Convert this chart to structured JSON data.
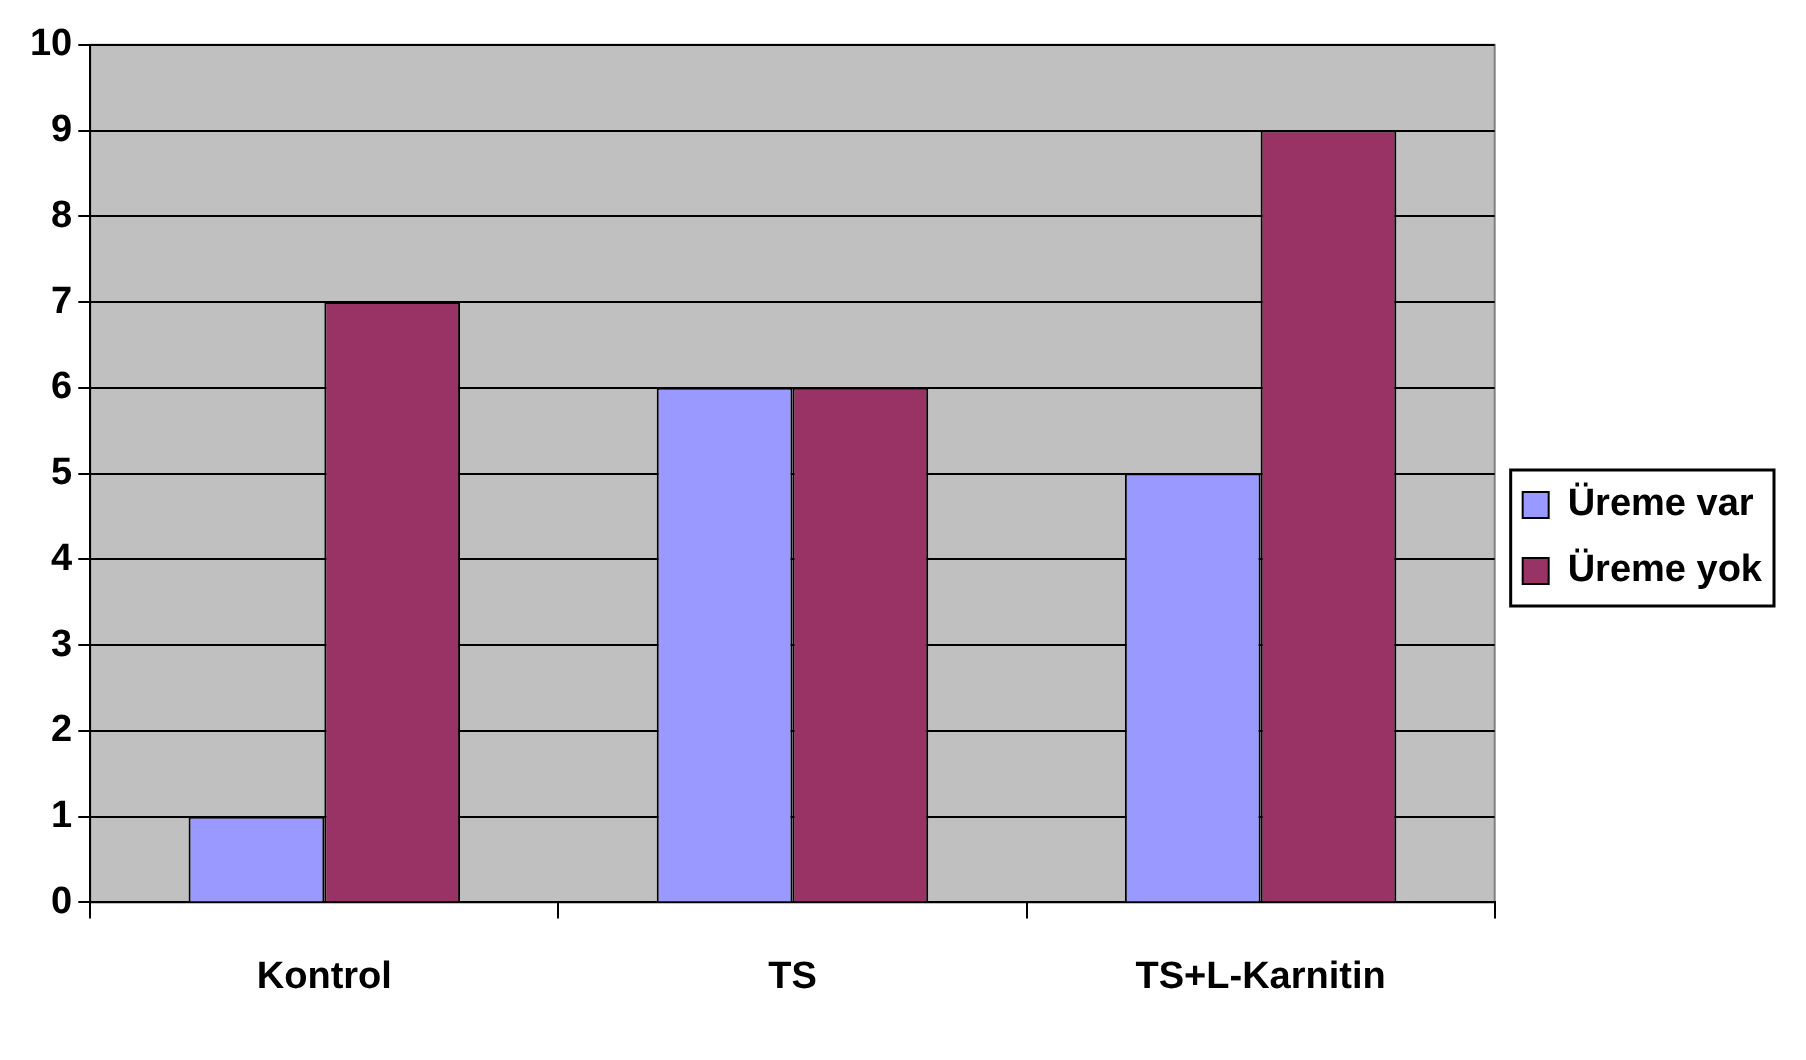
{
  "chart_data": {
    "type": "bar",
    "categories": [
      "Kontrol",
      "TS",
      "TS+L-Karnitin"
    ],
    "series": [
      {
        "name": "Üreme var",
        "color": "#9999ff",
        "values": [
          1,
          6,
          5
        ]
      },
      {
        "name": "Üreme yok",
        "color": "#993366",
        "values": [
          7,
          6,
          9
        ]
      }
    ],
    "ylim": [
      0,
      10
    ],
    "yticks": [
      0,
      1,
      2,
      3,
      4,
      5,
      6,
      7,
      8,
      9,
      10
    ],
    "grid": "y",
    "legend": "right"
  }
}
